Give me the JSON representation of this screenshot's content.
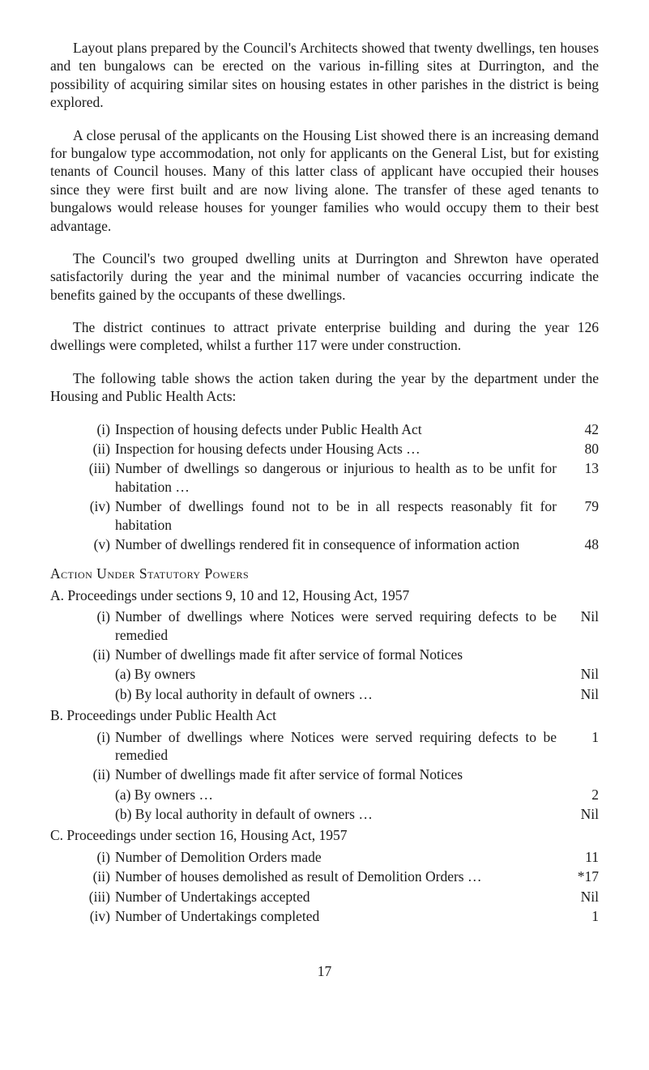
{
  "paragraphs": {
    "p1": "Layout plans prepared by the Council's Architects showed that twenty dwellings, ten houses and ten bungalows can be erected on the various in-filling sites at Durrington, and the possibility of acquiring similar sites on housing estates in other parishes in the district is being explored.",
    "p2": "A close perusal of the applicants on the Housing List showed there is an increasing demand for bungalow type accommodation, not only for applicants on the General List, but for existing tenants of Council houses. Many of this latter class of applicant have occupied their houses since they were first built and are now living alone. The transfer of these aged tenants to bungalows would release houses for younger families who would occupy them to their best advantage.",
    "p3": "The Council's two grouped dwelling units at Durrington and Shrewton have operated satisfactorily during the year and the minimal number of vacancies occurring indicate the benefits gained by the occupants of these dwellings.",
    "p4": "The district continues to attract private enterprise building and during the year 126 dwellings were completed, whilst a further 117 were under construction.",
    "p5": "The following table shows the action taken during the year by the department under the Housing and Public Health Acts:"
  },
  "table1": {
    "items": [
      {
        "label": "(i)",
        "text": "Inspection of housing defects under Public Health Act",
        "value": "42"
      },
      {
        "label": "(ii)",
        "text": "Inspection for housing defects under Housing Acts …",
        "value": "80"
      },
      {
        "label": "(iii)",
        "text": "Number of dwellings so dangerous or injurious to health as to be unfit for habitation   …",
        "value": "13"
      },
      {
        "label": "(iv)",
        "text": "Number of dwellings found not to be in all respects reasonably fit for habitation",
        "value": "79"
      },
      {
        "label": "(v)",
        "text": "Number of dwellings rendered fit in consequence of information action",
        "value": "48"
      }
    ]
  },
  "action_heading": "Action Under Statutory Powers",
  "sectionA": {
    "intro": "A. Proceedings under sections 9, 10 and 12, Housing Act, 1957",
    "items": [
      {
        "label": "(i)",
        "text": "Number of dwellings where Notices were served requiring defects to be remedied",
        "value": "Nil"
      },
      {
        "label": "(ii)",
        "text": "Number of dwellings made fit after service of formal Notices",
        "value": ""
      }
    ],
    "subitems": [
      {
        "text": "(a) By owners",
        "value": "Nil"
      },
      {
        "text": "(b) By local authority in default of owners …",
        "value": "Nil"
      }
    ]
  },
  "sectionB": {
    "intro": "B. Proceedings under Public Health Act",
    "items": [
      {
        "label": "(i)",
        "text": "Number of dwellings where Notices were served requiring defects to be remedied",
        "value": "1"
      },
      {
        "label": "(ii)",
        "text": "Number of dwellings made fit after service of formal Notices",
        "value": ""
      }
    ],
    "subitems": [
      {
        "text": "(a) By owners …",
        "value": "2"
      },
      {
        "text": "(b) By local authority in default of owners …",
        "value": "Nil"
      }
    ]
  },
  "sectionC": {
    "intro": "C. Proceedings under section 16, Housing Act, 1957",
    "items": [
      {
        "label": "(i)",
        "text": "Number of Demolition Orders made",
        "value": "11"
      },
      {
        "label": "(ii)",
        "text": "Number of houses demolished as result of Demolition Orders …",
        "value": "*17"
      },
      {
        "label": "(iii)",
        "text": "Number of Undertakings accepted",
        "value": "Nil"
      },
      {
        "label": "(iv)",
        "text": "Number of Undertakings completed",
        "value": "1"
      }
    ]
  },
  "page_number": "17"
}
